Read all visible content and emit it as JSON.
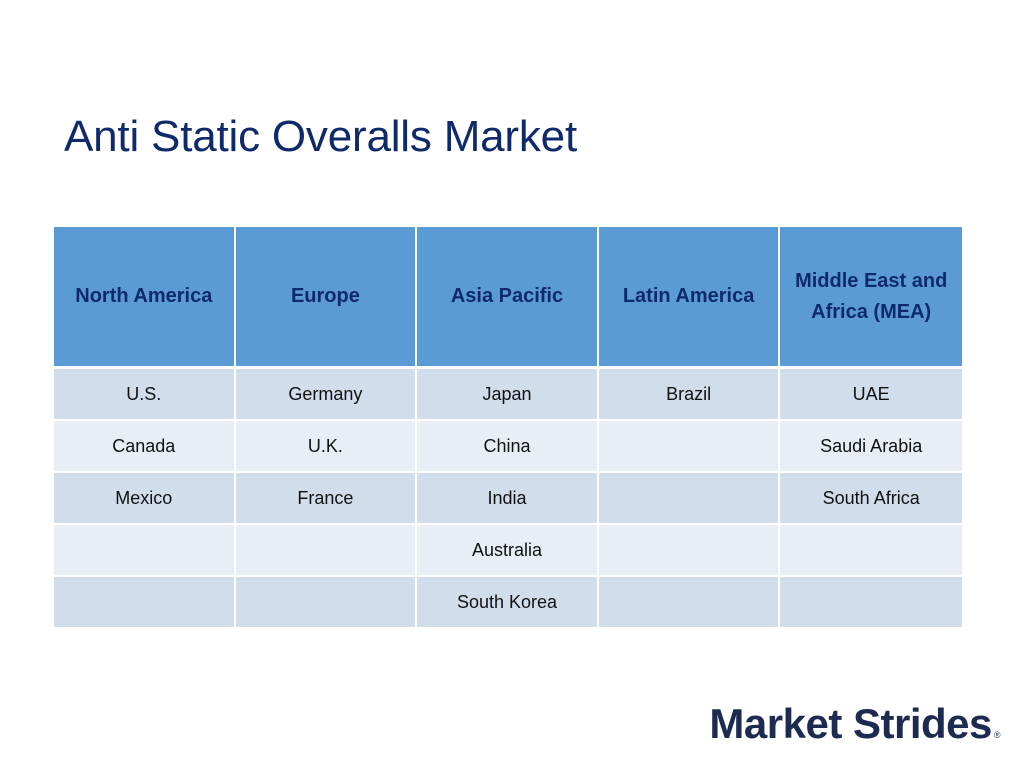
{
  "slide": {
    "title": "Anti Static Overalls Market"
  },
  "table": {
    "headers": [
      "North America",
      "Europe",
      "Asia Pacific",
      "Latin America",
      "Middle East and Africa (MEA)"
    ],
    "rows": [
      [
        "U.S.",
        "Germany",
        "Japan",
        "Brazil",
        "UAE"
      ],
      [
        "Canada",
        "U.K.",
        "China",
        "",
        "Saudi Arabia"
      ],
      [
        "Mexico",
        "France",
        "India",
        "",
        "South Africa"
      ],
      [
        "",
        "",
        "Australia",
        "",
        ""
      ],
      [
        "",
        "",
        "South Korea",
        "",
        ""
      ]
    ]
  },
  "brand": {
    "name": "Market Strides",
    "mark": "®"
  },
  "colors": {
    "title": "#0f2a6b",
    "header_bg": "#5b9bd5",
    "row_dark": "#d2ddec",
    "row_light": "#e9eef6",
    "logo": "#1c2b4f"
  }
}
